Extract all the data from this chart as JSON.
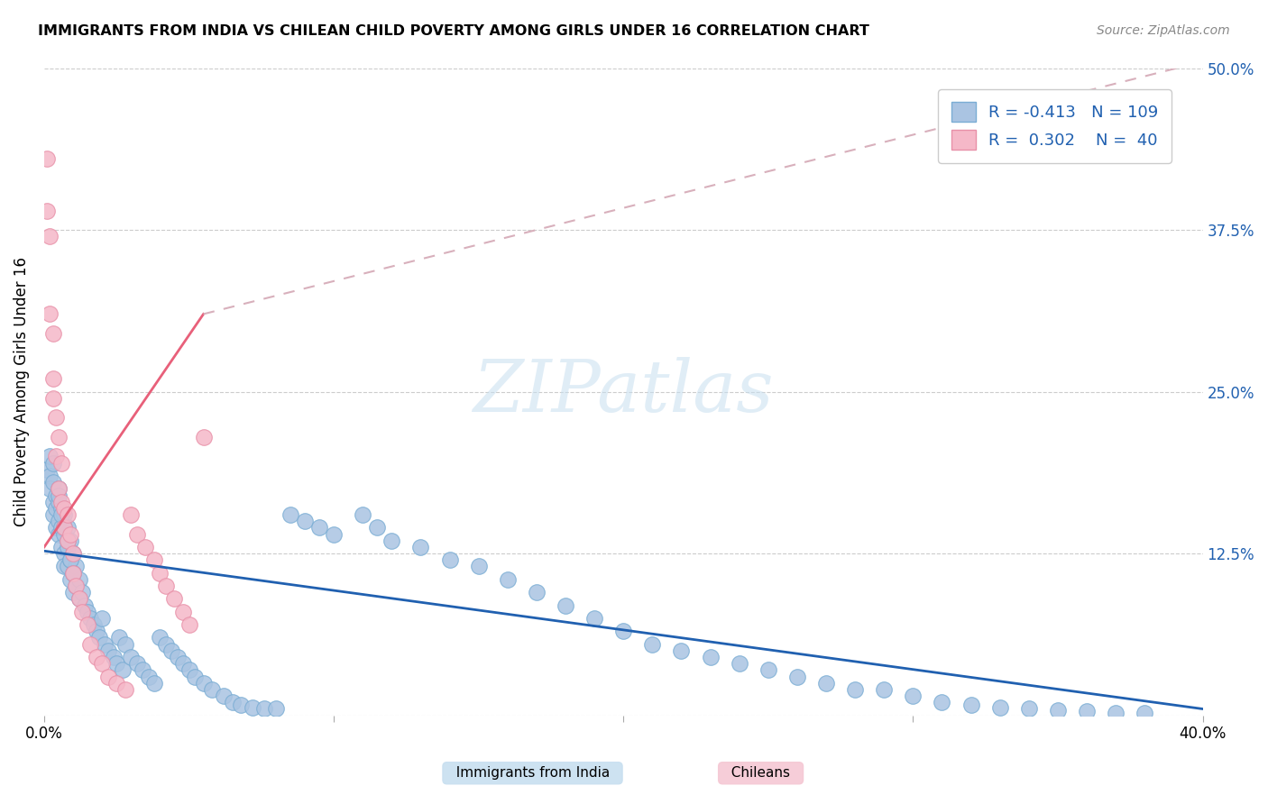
{
  "title": "IMMIGRANTS FROM INDIA VS CHILEAN CHILD POVERTY AMONG GIRLS UNDER 16 CORRELATION CHART",
  "source": "Source: ZipAtlas.com",
  "ylabel": "Child Poverty Among Girls Under 16",
  "xlim": [
    0.0,
    0.4
  ],
  "ylim": [
    0.0,
    0.5
  ],
  "legend_r_india": "-0.413",
  "legend_n_india": "109",
  "legend_r_chile": "0.302",
  "legend_n_chile": "40",
  "watermark": "ZIPatlas",
  "india_color": "#aac4e2",
  "india_edge_color": "#7aadd4",
  "chile_color": "#f5b8c8",
  "chile_edge_color": "#e890a8",
  "india_line_color": "#2060b0",
  "chile_line_color": "#e8607a",
  "chile_line_ext_color": "#d8b0bc",
  "india_scatter_x": [
    0.001,
    0.002,
    0.002,
    0.002,
    0.003,
    0.003,
    0.003,
    0.003,
    0.004,
    0.004,
    0.004,
    0.005,
    0.005,
    0.005,
    0.005,
    0.006,
    0.006,
    0.006,
    0.007,
    0.007,
    0.007,
    0.007,
    0.008,
    0.008,
    0.008,
    0.009,
    0.009,
    0.009,
    0.01,
    0.01,
    0.01,
    0.011,
    0.011,
    0.012,
    0.012,
    0.013,
    0.014,
    0.015,
    0.016,
    0.017,
    0.018,
    0.019,
    0.02,
    0.021,
    0.022,
    0.024,
    0.025,
    0.026,
    0.027,
    0.028,
    0.03,
    0.032,
    0.034,
    0.036,
    0.038,
    0.04,
    0.042,
    0.044,
    0.046,
    0.048,
    0.05,
    0.052,
    0.055,
    0.058,
    0.062,
    0.065,
    0.068,
    0.072,
    0.076,
    0.08,
    0.085,
    0.09,
    0.095,
    0.1,
    0.11,
    0.115,
    0.12,
    0.13,
    0.14,
    0.15,
    0.16,
    0.17,
    0.18,
    0.19,
    0.2,
    0.21,
    0.22,
    0.23,
    0.24,
    0.25,
    0.26,
    0.27,
    0.28,
    0.29,
    0.3,
    0.31,
    0.32,
    0.33,
    0.34,
    0.35,
    0.36,
    0.37,
    0.38,
    0.005,
    0.006,
    0.007,
    0.008,
    0.009,
    0.01
  ],
  "india_scatter_y": [
    0.19,
    0.2,
    0.185,
    0.175,
    0.195,
    0.18,
    0.165,
    0.155,
    0.17,
    0.16,
    0.145,
    0.175,
    0.165,
    0.15,
    0.14,
    0.16,
    0.145,
    0.13,
    0.155,
    0.14,
    0.125,
    0.115,
    0.145,
    0.13,
    0.115,
    0.135,
    0.12,
    0.105,
    0.125,
    0.11,
    0.095,
    0.115,
    0.1,
    0.105,
    0.09,
    0.095,
    0.085,
    0.08,
    0.075,
    0.07,
    0.065,
    0.06,
    0.075,
    0.055,
    0.05,
    0.045,
    0.04,
    0.06,
    0.035,
    0.055,
    0.045,
    0.04,
    0.035,
    0.03,
    0.025,
    0.06,
    0.055,
    0.05,
    0.045,
    0.04,
    0.035,
    0.03,
    0.025,
    0.02,
    0.015,
    0.01,
    0.008,
    0.006,
    0.005,
    0.005,
    0.155,
    0.15,
    0.145,
    0.14,
    0.155,
    0.145,
    0.135,
    0.13,
    0.12,
    0.115,
    0.105,
    0.095,
    0.085,
    0.075,
    0.065,
    0.055,
    0.05,
    0.045,
    0.04,
    0.035,
    0.03,
    0.025,
    0.02,
    0.02,
    0.015,
    0.01,
    0.008,
    0.006,
    0.005,
    0.004,
    0.003,
    0.002,
    0.002,
    0.17,
    0.155,
    0.145,
    0.135,
    0.12,
    0.11
  ],
  "chile_scatter_x": [
    0.001,
    0.001,
    0.002,
    0.002,
    0.003,
    0.003,
    0.003,
    0.004,
    0.004,
    0.005,
    0.005,
    0.006,
    0.006,
    0.007,
    0.007,
    0.008,
    0.008,
    0.009,
    0.01,
    0.01,
    0.011,
    0.012,
    0.013,
    0.015,
    0.016,
    0.018,
    0.02,
    0.022,
    0.025,
    0.028,
    0.03,
    0.032,
    0.035,
    0.038,
    0.04,
    0.042,
    0.045,
    0.048,
    0.05,
    0.055
  ],
  "chile_scatter_y": [
    0.43,
    0.39,
    0.37,
    0.31,
    0.295,
    0.26,
    0.245,
    0.23,
    0.2,
    0.215,
    0.175,
    0.195,
    0.165,
    0.16,
    0.145,
    0.155,
    0.135,
    0.14,
    0.125,
    0.11,
    0.1,
    0.09,
    0.08,
    0.07,
    0.055,
    0.045,
    0.04,
    0.03,
    0.025,
    0.02,
    0.155,
    0.14,
    0.13,
    0.12,
    0.11,
    0.1,
    0.09,
    0.08,
    0.07,
    0.215
  ],
  "india_trend_x0": 0.0,
  "india_trend_y0": 0.127,
  "india_trend_x1": 0.4,
  "india_trend_y1": 0.005,
  "chile_trend_solid_x0": 0.0,
  "chile_trend_solid_y0": 0.13,
  "chile_trend_solid_x1": 0.055,
  "chile_trend_solid_y1": 0.31,
  "chile_trend_dash_x0": 0.055,
  "chile_trend_dash_y0": 0.31,
  "chile_trend_dash_x1": 0.4,
  "chile_trend_dash_y1": 0.505
}
